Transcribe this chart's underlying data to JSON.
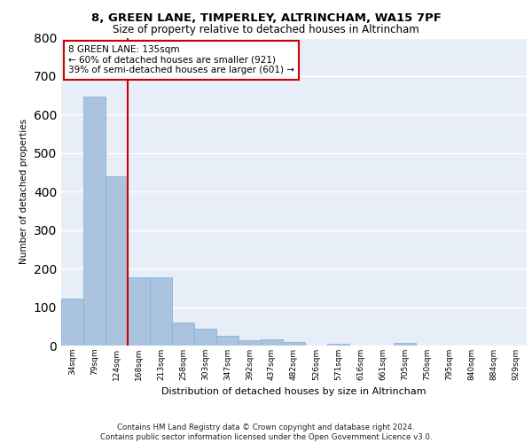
{
  "title1": "8, GREEN LANE, TIMPERLEY, ALTRINCHAM, WA15 7PF",
  "title2": "Size of property relative to detached houses in Altrincham",
  "xlabel": "Distribution of detached houses by size in Altrincham",
  "ylabel": "Number of detached properties",
  "categories": [
    "34sqm",
    "79sqm",
    "124sqm",
    "168sqm",
    "213sqm",
    "258sqm",
    "303sqm",
    "347sqm",
    "392sqm",
    "437sqm",
    "482sqm",
    "526sqm",
    "571sqm",
    "616sqm",
    "661sqm",
    "705sqm",
    "750sqm",
    "795sqm",
    "840sqm",
    "884sqm",
    "929sqm"
  ],
  "values": [
    122,
    648,
    440,
    178,
    178,
    59,
    44,
    25,
    13,
    15,
    9,
    0,
    5,
    0,
    0,
    7,
    0,
    0,
    0,
    0,
    0
  ],
  "bar_color": "#aac4e0",
  "bar_edge_color": "#7bafd4",
  "vline_x": 2.5,
  "vline_color": "#cc0000",
  "annotation_text": "8 GREEN LANE: 135sqm\n← 60% of detached houses are smaller (921)\n39% of semi-detached houses are larger (601) →",
  "annotation_box_color": "#ffffff",
  "annotation_box_edge_color": "#cc0000",
  "ylim": [
    0,
    800
  ],
  "yticks": [
    0,
    100,
    200,
    300,
    400,
    500,
    600,
    700,
    800
  ],
  "bg_color": "#e8eef8",
  "grid_color": "#ffffff",
  "footer": "Contains HM Land Registry data © Crown copyright and database right 2024.\nContains public sector information licensed under the Open Government Licence v3.0."
}
